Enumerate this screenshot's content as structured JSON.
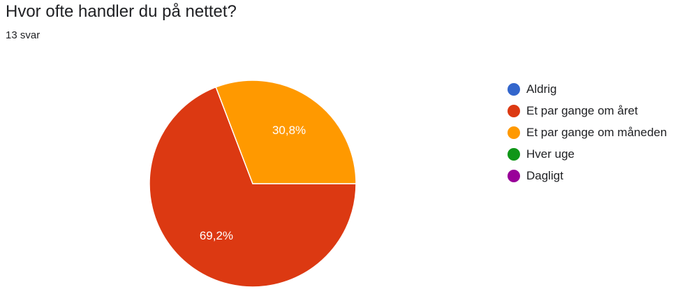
{
  "header": {
    "title": "Hvor ofte handler du på nettet?",
    "response_count": "13 svar"
  },
  "chart_data": {
    "type": "pie",
    "categories": [
      "Aldrig",
      "Et par gange om året",
      "Et par gange om måneden",
      "Hver uge",
      "Dagligt"
    ],
    "values": [
      0,
      69.2,
      30.8,
      0,
      0
    ],
    "data_labels": [
      "",
      "69,2%",
      "30,8%",
      "",
      ""
    ],
    "colors": [
      "#3366cc",
      "#dc3912",
      "#ff9900",
      "#109618",
      "#990099"
    ],
    "legend_position": "right"
  }
}
